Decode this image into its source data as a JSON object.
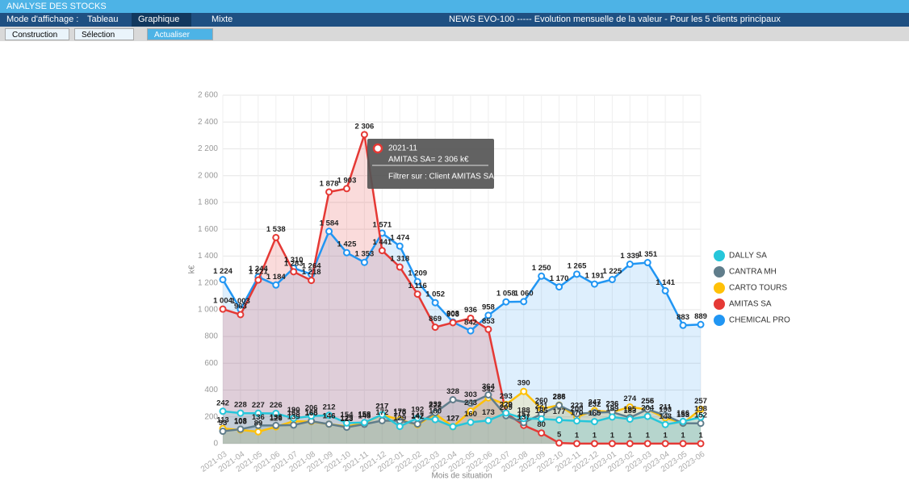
{
  "header": {
    "title": "ANALYSE DES STOCKS"
  },
  "toolbar": {
    "mode_label": "Mode d'affichage :",
    "modes": [
      "Tableau",
      "Graphique",
      "Mixte"
    ],
    "view_title": "NEWS EVO-100 ----- Evolution mensuelle de la valeur - Pour les 5 clients principaux"
  },
  "buttons": [
    "Construction",
    "Sélection",
    "Actualiser (F5)"
  ],
  "chart_data": {
    "type": "line",
    "xlabel": "Mois de situation",
    "ylabel": "k€",
    "categories": [
      "2021-03",
      "2021-04",
      "2021-05",
      "2021-06",
      "2021-07",
      "2021-08",
      "2021-09",
      "2021-10",
      "2021-11",
      "2021-12",
      "2022-01",
      "2022-02",
      "2022-03",
      "2022-04",
      "2022-05",
      "2022-06",
      "2022-07",
      "2022-08",
      "2022-09",
      "2022-10",
      "2022-11",
      "2022-12",
      "2023-01",
      "2023-02",
      "2023-03",
      "2023-04",
      "2023-05",
      "2023-06"
    ],
    "ylim": [
      0,
      2600
    ],
    "yticks": [
      0,
      200,
      400,
      600,
      800,
      {
        "value": 1000,
        "label": "1 000"
      },
      {
        "value": 1200,
        "label": "1 200"
      },
      {
        "value": 1400,
        "label": "1 400"
      },
      {
        "value": 1600,
        "label": "1 600"
      },
      {
        "value": 1800,
        "label": "1 800"
      },
      {
        "value": 2000,
        "label": "2 000"
      },
      {
        "value": 2200,
        "label": "2 200"
      },
      {
        "value": 2400,
        "label": "2 400"
      },
      {
        "value": 2600,
        "label": "2 600"
      }
    ],
    "grid": true,
    "series": [
      {
        "name": "DALLY SA",
        "color": "#26c6da",
        "values": [
          242,
          228,
          227,
          226,
          190,
          206,
          212,
          154,
          158,
          217,
          129,
          192,
          180,
          127,
          160,
          173,
          229,
          188,
          185,
          177,
          170,
          165,
          199,
          183,
          204,
          143,
          166,
          198
        ]
      },
      {
        "name": "CANTRA MH",
        "color": "#607d8b",
        "values": [
          93,
          108,
          136,
          136,
          139,
          168,
          146,
          123,
          145,
          172,
          170,
          147,
          232,
          328,
          303,
          364,
          209,
          157,
          221,
          286,
          223,
          232,
          236,
          195,
          256,
          211,
          153,
          152
        ]
      },
      {
        "name": "CARTO TOURS",
        "color": "#ffc107",
        "values": [
          113,
          103,
          89,
          126,
          168,
          165,
          146,
          129,
          155,
          217,
          178,
          142,
          222,
          127,
          243,
          342,
          293,
          390,
          260,
          288,
          200,
          247,
          236,
          274,
          255,
          193,
          153,
          257
        ]
      },
      {
        "name": "AMITAS SA",
        "color": "#e53935",
        "values": [
          1004,
          963,
          1221,
          1538,
          1283,
          1218,
          1878,
          1903,
          2306,
          1441,
          1318,
          1116,
          869,
          903,
          936,
          853,
          229,
          137,
          80,
          5,
          1,
          1,
          1,
          1,
          1,
          1,
          1,
          1
        ],
        "value_labels": [
          "1 004",
          "963",
          "1 221",
          "1 538",
          "1 283",
          "1 218",
          "1 878",
          "1 903",
          "2 306",
          "1 441",
          "1 318",
          "1 116",
          "869",
          "903",
          "936",
          "853",
          "229",
          "137",
          "80",
          "5",
          "1",
          "1",
          "1",
          "1",
          "1",
          "1",
          "1",
          "1"
        ]
      },
      {
        "name": "CHEMICAL PRO",
        "color": "#2196f3",
        "values": [
          1224,
          1003,
          1244,
          1184,
          1310,
          1264,
          1584,
          1425,
          1353,
          1571,
          1474,
          1209,
          1052,
          908,
          842,
          958,
          1058,
          1060,
          1250,
          1170,
          1265,
          1191,
          1225,
          1339,
          1351,
          1141,
          883,
          889
        ],
        "value_labels": [
          "1 224",
          "1 003",
          "1 244",
          "1 184",
          "1 310",
          "1 264",
          "1 584",
          "1 425",
          "1 353",
          "1 571",
          "1 474",
          "1 209",
          "1 052",
          "908",
          "842",
          "958",
          "1 058",
          "1 060",
          "1 250",
          "1 170",
          "1 265",
          "1 191",
          "1 225",
          "1 339",
          "1 351",
          "1 141",
          "883",
          "889"
        ]
      }
    ],
    "tooltip": {
      "title": "2021-11",
      "text": "AMITAS SA= 2 306 k€",
      "action": "Filtrer sur : Client AMITAS SA"
    }
  }
}
